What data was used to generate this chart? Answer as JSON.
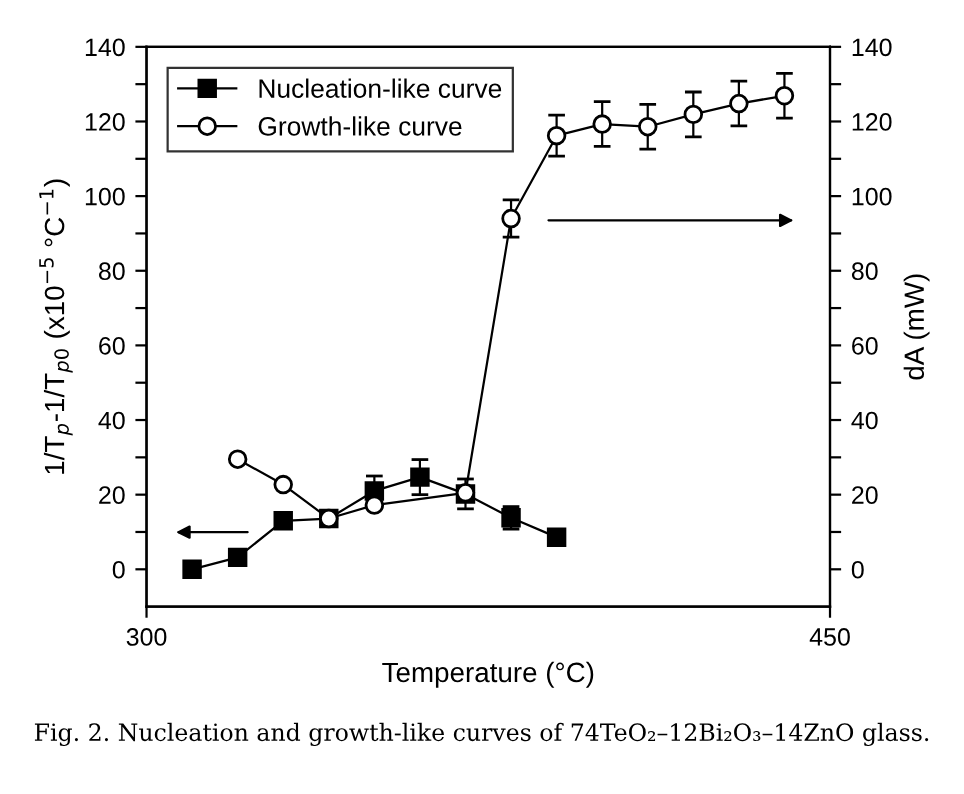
{
  "chart_data": {
    "type": "line",
    "xlabel": "Temperature (°C)",
    "ylabel": "1/T$_{p}$-1/T$_{p0}$ (x10$^{−5}$ °C$^{−1}$)",
    "y2label": "dA (mW)",
    "annotations": [
      "Fig. 2. Nucleation and growth-like curves of 74TeO₂–12Bi₂O₃–14ZnO glass."
    ],
    "series": [
      {
        "name": "Nucleation-like curve",
        "color": "#000000",
        "marker": "square",
        "axis": "y",
        "x": [
          310,
          320,
          330,
          340,
          350,
          360,
          370,
          380,
          390
        ],
        "values": [
          0,
          3.2,
          13,
          13.6,
          21,
          24.7,
          20.2,
          13.8,
          8.6
        ],
        "errors": [
          null,
          null,
          2,
          2,
          4,
          4.7,
          4,
          3,
          null
        ]
      },
      {
        "name": "Growth-like curve",
        "color": "#000000",
        "marker": "circle",
        "axis": "y2",
        "x": [
          320,
          330,
          340,
          350,
          370,
          380,
          390,
          400,
          410,
          420,
          430,
          440
        ],
        "values": [
          29.5,
          22.7,
          13.6,
          17.2,
          20.5,
          94,
          116.2,
          119.3,
          118.6,
          121.9,
          124.8,
          126.9
        ],
        "errors": [
          null,
          null,
          null,
          null,
          null,
          5,
          5.5,
          6,
          6,
          6,
          6,
          6
        ]
      }
    ],
    "xlim": [
      300,
      450
    ],
    "xticks": [
      300,
      450
    ],
    "ylim": [
      -10,
      140
    ],
    "yticks": [
      0,
      {
        "value": 10,
        "label": null
      },
      20,
      {
        "value": 30,
        "label": null
      },
      40,
      {
        "value": 50,
        "label": null
      },
      60,
      {
        "value": 70,
        "label": null
      },
      80,
      {
        "value": 90,
        "label": null
      },
      100,
      {
        "value": 110,
        "label": null
      },
      120,
      {
        "value": 130,
        "label": null
      },
      140
    ],
    "y2lim": [
      -10,
      140
    ],
    "y2ticks": [
      0,
      {
        "value": 10,
        "label": null
      },
      20,
      {
        "value": 30,
        "label": null
      },
      40,
      {
        "value": 50,
        "label": null
      },
      60,
      {
        "value": 70,
        "label": null
      },
      80,
      {
        "value": 90,
        "label": null
      },
      100,
      {
        "value": 110,
        "label": null
      },
      120,
      {
        "value": 130,
        "label": null
      },
      140
    ],
    "legend": "top left",
    "grid": false
  }
}
